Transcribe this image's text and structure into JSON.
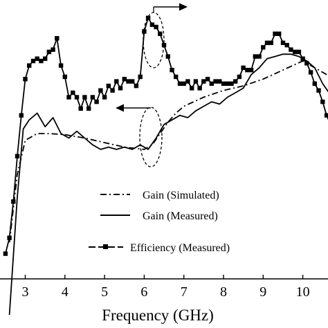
{
  "chart_data": {
    "type": "line",
    "title": "",
    "xlabel": "Frequency (GHz)",
    "ylabel": "",
    "xlim": [
      2.5,
      10.7
    ],
    "x_ticks": [
      "3",
      "4",
      "5",
      "6",
      "7",
      "8",
      "9",
      "10"
    ],
    "grid": false,
    "legend_placement": "center-right",
    "series": [
      {
        "name": "Gain (Simulated)",
        "style": "dash-dot",
        "color": "#000000",
        "x": [
          2.6,
          2.8,
          3.0,
          3.3,
          3.6,
          4.0,
          4.5,
          5.0,
          5.5,
          6.0,
          6.2,
          6.4,
          6.6,
          6.8,
          7.0,
          7.5,
          8.0,
          8.5,
          9.0,
          9.5,
          10.0,
          10.4,
          10.7
        ],
        "y": [
          0.1,
          0.4,
          0.55,
          0.58,
          0.58,
          0.575,
          0.56,
          0.54,
          0.52,
          0.51,
          0.53,
          0.58,
          0.63,
          0.67,
          0.7,
          0.74,
          0.77,
          0.79,
          0.82,
          0.86,
          0.9,
          0.86,
          0.83
        ]
      },
      {
        "name": "Gain (Measured)",
        "style": "solid",
        "color": "#000000",
        "x": [
          2.6,
          2.8,
          2.95,
          3.1,
          3.3,
          3.5,
          3.7,
          3.9,
          4.1,
          4.3,
          4.5,
          4.7,
          4.9,
          5.1,
          5.3,
          5.5,
          5.7,
          5.9,
          6.1,
          6.3,
          6.5,
          6.7,
          6.9,
          7.1,
          7.3,
          7.5,
          7.7,
          7.9,
          8.1,
          8.3,
          8.5,
          8.7,
          8.9,
          9.1,
          9.3,
          9.5,
          9.7,
          9.9,
          10.1,
          10.3,
          10.5,
          10.7
        ],
        "y": [
          -0.22,
          0.3,
          0.6,
          0.64,
          0.67,
          0.61,
          0.65,
          0.58,
          0.56,
          0.59,
          0.56,
          0.53,
          0.51,
          0.52,
          0.51,
          0.52,
          0.51,
          0.53,
          0.51,
          0.56,
          0.62,
          0.64,
          0.66,
          0.65,
          0.68,
          0.7,
          0.72,
          0.71,
          0.74,
          0.76,
          0.78,
          0.84,
          0.87,
          0.91,
          0.92,
          0.93,
          0.93,
          0.92,
          0.9,
          0.87,
          0.8,
          0.75
        ]
      },
      {
        "name": "Efficiency (Measured)",
        "style": "dash-square-markers",
        "color": "#000000",
        "x": [
          2.5,
          2.6,
          2.7,
          2.8,
          2.9,
          3.0,
          3.1,
          3.2,
          3.3,
          3.4,
          3.5,
          3.6,
          3.7,
          3.8,
          3.9,
          4.0,
          4.1,
          4.2,
          4.3,
          4.4,
          4.5,
          4.6,
          4.7,
          4.8,
          4.9,
          5.0,
          5.1,
          5.2,
          5.3,
          5.4,
          5.5,
          5.6,
          5.7,
          5.8,
          5.9,
          6.0,
          6.1,
          6.2,
          6.3,
          6.4,
          6.5,
          6.6,
          6.7,
          6.8,
          6.9,
          7.0,
          7.1,
          7.2,
          7.3,
          7.4,
          7.5,
          7.6,
          7.7,
          7.8,
          7.9,
          8.0,
          8.1,
          8.2,
          8.3,
          8.4,
          8.5,
          8.6,
          8.7,
          8.8,
          8.9,
          9.0,
          9.1,
          9.2,
          9.3,
          9.4,
          9.5,
          9.6,
          9.7,
          9.8,
          9.9,
          10.0,
          10.1,
          10.2,
          10.3,
          10.4,
          10.5,
          10.6,
          10.7
        ],
        "y": [
          0.05,
          0.12,
          0.28,
          0.48,
          0.66,
          0.82,
          0.88,
          0.9,
          0.91,
          0.9,
          0.91,
          0.94,
          0.95,
          1.0,
          0.88,
          0.83,
          0.74,
          0.76,
          0.74,
          0.69,
          0.74,
          0.69,
          0.74,
          0.72,
          0.77,
          0.74,
          0.79,
          0.77,
          0.81,
          0.78,
          0.82,
          0.81,
          0.81,
          0.79,
          0.83,
          1.03,
          1.09,
          1.06,
          1.05,
          1.02,
          0.97,
          0.92,
          0.86,
          0.83,
          0.8,
          0.8,
          0.81,
          0.78,
          0.81,
          0.78,
          0.81,
          0.82,
          0.8,
          0.81,
          0.81,
          0.8,
          0.8,
          0.8,
          0.81,
          0.83,
          0.87,
          0.86,
          0.86,
          0.92,
          0.92,
          0.96,
          0.98,
          0.98,
          1.02,
          1.02,
          0.98,
          0.97,
          0.95,
          0.94,
          0.94,
          0.91,
          0.89,
          0.85,
          0.8,
          0.77,
          0.72,
          0.66,
          0.62
        ]
      }
    ],
    "annotations": [
      {
        "shape": "ellipse",
        "center_x": 6.3,
        "center_y": 0.99,
        "arrow": "right",
        "points_to": "right axis (efficiency)"
      },
      {
        "shape": "ellipse",
        "center_x": 6.25,
        "center_y": 0.56,
        "arrow": "left",
        "points_to": "left axis (gain)"
      }
    ]
  }
}
